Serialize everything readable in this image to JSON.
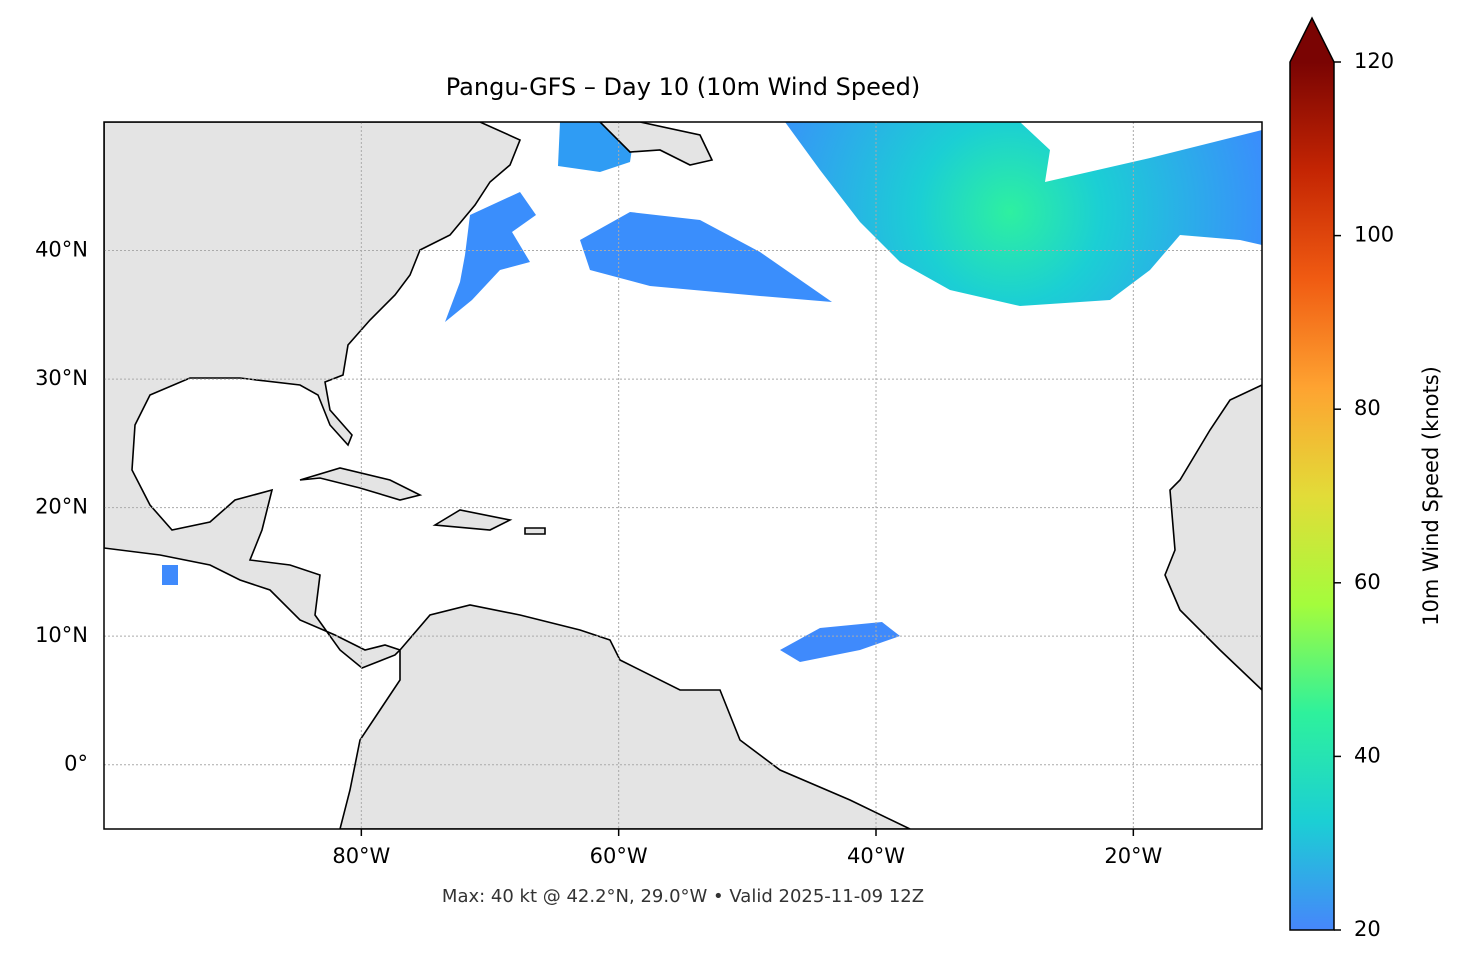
{
  "chart_data": {
    "type": "map",
    "title": "Pangu-GFS – Day 10 (10m Wind Speed)",
    "footnote": "Max: 40 kt @ 42.2°N, 29.0°W • Valid 2025-11-09 12Z",
    "xlim": [
      -100,
      -10
    ],
    "ylim": [
      -5,
      50
    ],
    "xticks": [
      {
        "value": -80,
        "label": "80°W"
      },
      {
        "value": -60,
        "label": "60°W"
      },
      {
        "value": -40,
        "label": "40°W"
      },
      {
        "value": -20,
        "label": "20°W"
      }
    ],
    "yticks": [
      {
        "value": 0,
        "label": "0°"
      },
      {
        "value": 10,
        "label": "10°N"
      },
      {
        "value": 20,
        "label": "20°N"
      },
      {
        "value": 30,
        "label": "30°N"
      },
      {
        "value": 40,
        "label": "40°N"
      }
    ],
    "grid": true,
    "colorbar": {
      "label": "10m Wind Speed (knots)",
      "lim": [
        20,
        120
      ],
      "ticks": [
        20,
        40,
        60,
        80,
        100,
        120
      ],
      "colors": [
        "#4686fb",
        "#1bcfd4",
        "#2ef19c",
        "#a4fc3c",
        "#e2dc38",
        "#fea331",
        "#f05b12",
        "#c42503",
        "#7a0403"
      ],
      "extend": "max"
    }
  }
}
